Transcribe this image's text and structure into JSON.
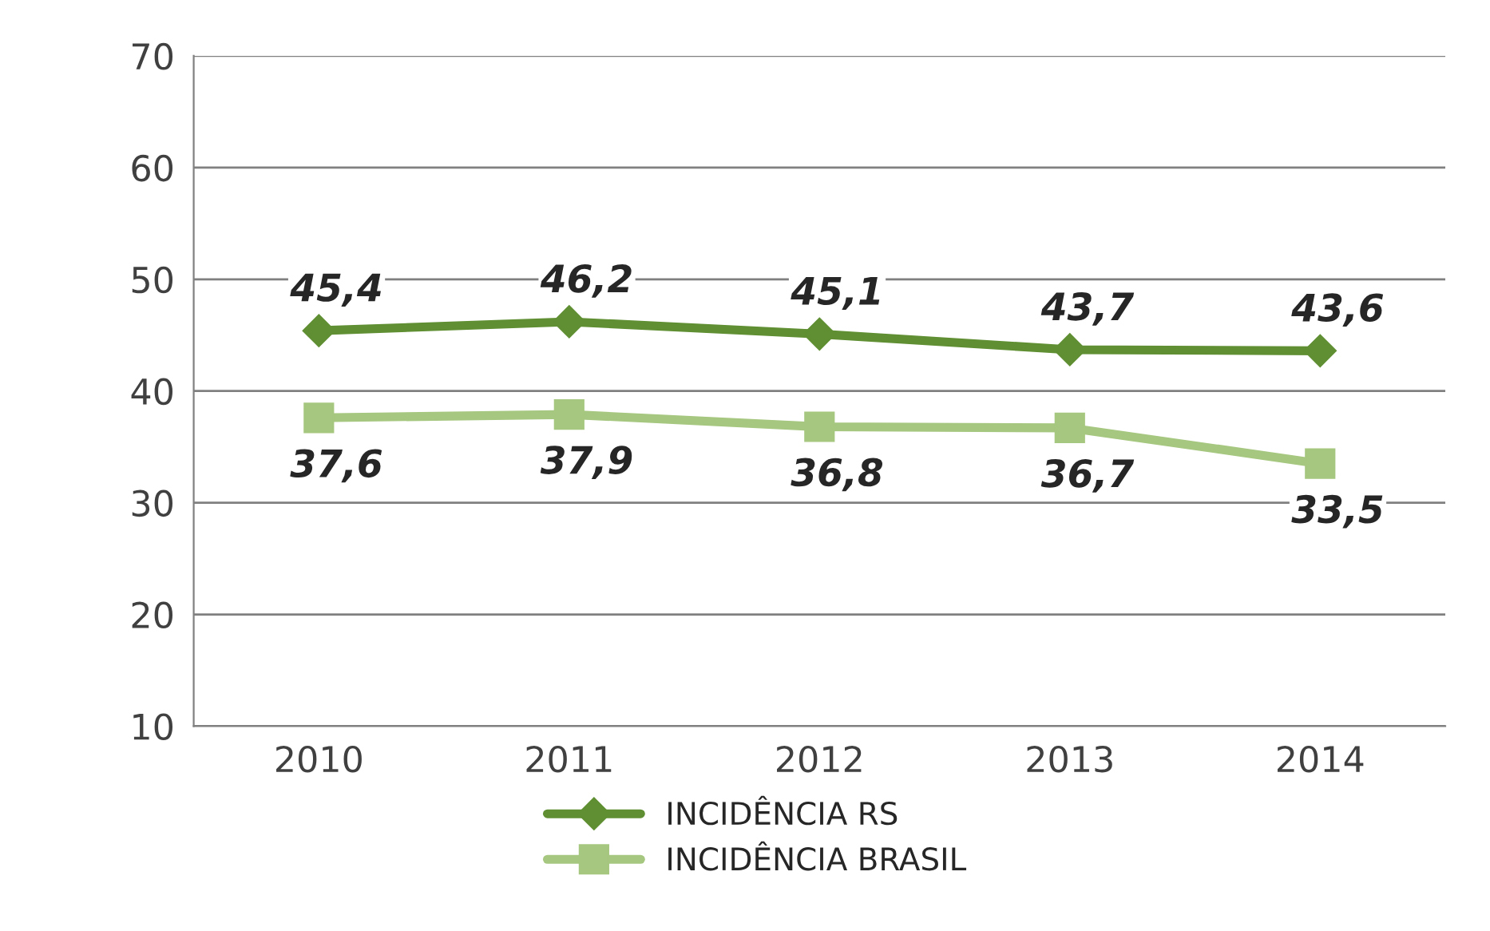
{
  "chart_data": {
    "type": "line",
    "categories": [
      "2010",
      "2011",
      "2012",
      "2013",
      "2014"
    ],
    "series": [
      {
        "name": "INCIDÊNCIA RS",
        "color": "#5f8f32",
        "marker": "diamond",
        "values": [
          45.4,
          46.2,
          45.1,
          43.7,
          43.6
        ],
        "value_labels": [
          "45,4",
          "46,2",
          "45,1",
          "43,7",
          "43,6"
        ]
      },
      {
        "name": "INCIDÊNCIA BRASIL",
        "color": "#a6c77f",
        "marker": "square",
        "values": [
          37.6,
          37.9,
          36.8,
          36.7,
          33.5
        ],
        "value_labels": [
          "37,6",
          "37,9",
          "36,8",
          "36,7",
          "33,5"
        ]
      }
    ],
    "ylim": [
      10,
      70
    ],
    "yticks": [
      10,
      20,
      30,
      40,
      50,
      60,
      70
    ],
    "grid": "y",
    "legend": "bottom",
    "line_style": "solid"
  }
}
